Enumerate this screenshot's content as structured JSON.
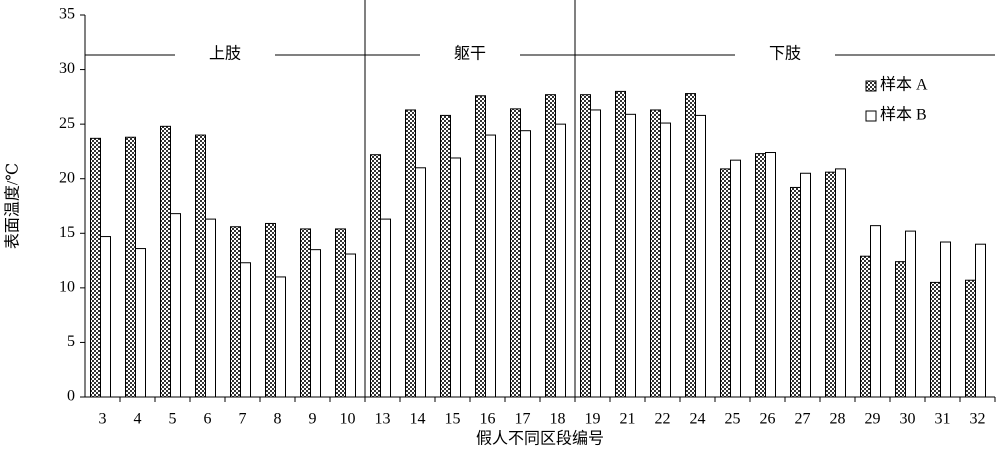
{
  "chart_data": {
    "type": "bar",
    "y_label": "表面温度/℃",
    "x_label": "假人不同区段编号",
    "categories": [
      "3",
      "4",
      "5",
      "6",
      "7",
      "8",
      "9",
      "10",
      "13",
      "14",
      "15",
      "16",
      "17",
      "18",
      "19",
      "21",
      "22",
      "24",
      "25",
      "26",
      "27",
      "28",
      "29",
      "30",
      "31",
      "32"
    ],
    "series": [
      {
        "name": "样本 A",
        "color": "#333333",
        "values": [
          23.7,
          23.8,
          24.8,
          24.0,
          15.6,
          15.9,
          15.4,
          15.4,
          22.2,
          26.3,
          25.8,
          27.6,
          26.4,
          27.7,
          27.7,
          28.0,
          26.3,
          27.8,
          20.9,
          22.3,
          19.2,
          20.6,
          12.9,
          12.4,
          10.5,
          10.7
        ]
      },
      {
        "name": "样本 B",
        "color": "#ffffff",
        "values": [
          14.7,
          13.6,
          16.8,
          16.3,
          12.3,
          11.0,
          13.5,
          13.1,
          16.3,
          21.0,
          21.9,
          24.0,
          24.4,
          25.0,
          26.3,
          25.9,
          25.1,
          25.8,
          21.7,
          22.4,
          20.5,
          20.9,
          15.7,
          15.2,
          14.2,
          14.0
        ]
      }
    ],
    "regions": [
      {
        "label": "上肢",
        "from": "3",
        "to": "10"
      },
      {
        "label": "躯干",
        "from": "13",
        "to": "18"
      },
      {
        "label": "下肢",
        "from": "19",
        "to": "32"
      }
    ],
    "ylim": [
      0,
      35
    ],
    "yticks": [
      0,
      5,
      10,
      15,
      20,
      25,
      30,
      35
    ],
    "grid": false,
    "legend": "upper right"
  }
}
